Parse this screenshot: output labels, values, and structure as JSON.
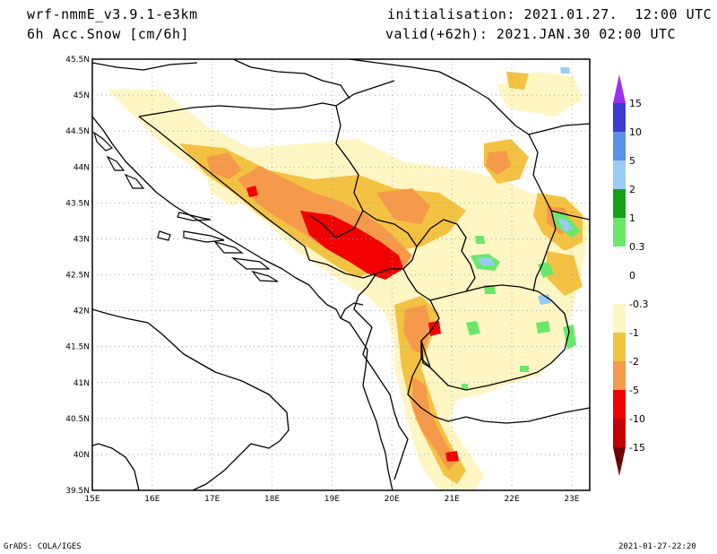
{
  "header": {
    "model": "wrf-nmmE_v3.9.1-e3km",
    "field": "6h Acc.Snow [cm/6h]",
    "initialisation": "initialisation: 2021.01.27.  12:00 UTC",
    "valid": "valid(+62h): 2021.JAN.30 02:00 UTC"
  },
  "footer": {
    "left": "GrADS: COLA/IGES",
    "right": "2021-01-27-22:20"
  },
  "map": {
    "lon_labels": [
      "15E",
      "16E",
      "17E",
      "18E",
      "19E",
      "20E",
      "21E",
      "22E",
      "23E"
    ],
    "lat_labels": [
      "45.5N",
      "45N",
      "44.5N",
      "44N",
      "43.5N",
      "43N",
      "42.5N",
      "42N",
      "41.5N",
      "41N",
      "40.5N",
      "40N",
      "39.5N"
    ],
    "lon_range": [
      15,
      23.3
    ],
    "lat_range": [
      39.5,
      45.5
    ]
  },
  "colorbar": {
    "labels": [
      "15",
      "10",
      "5",
      "2",
      "1",
      "0.3",
      "0",
      "-0.3",
      "-1",
      "-2",
      "-5",
      "-10",
      "-15"
    ],
    "colors": [
      "#3d3dd6",
      "#5b8fe8",
      "#99ccf5",
      "#14a014",
      "#6ae86a",
      "#ffffff",
      "#ffffff",
      "#fff6c4",
      "#f4c242",
      "#f59a4a",
      "#f20000",
      "#c40000",
      "#8e0000"
    ],
    "top_arrow_color": "#9b30f0",
    "bottom_arrow_color": "#700000"
  },
  "colors": {
    "border": "#000000",
    "grid": "#999999"
  }
}
